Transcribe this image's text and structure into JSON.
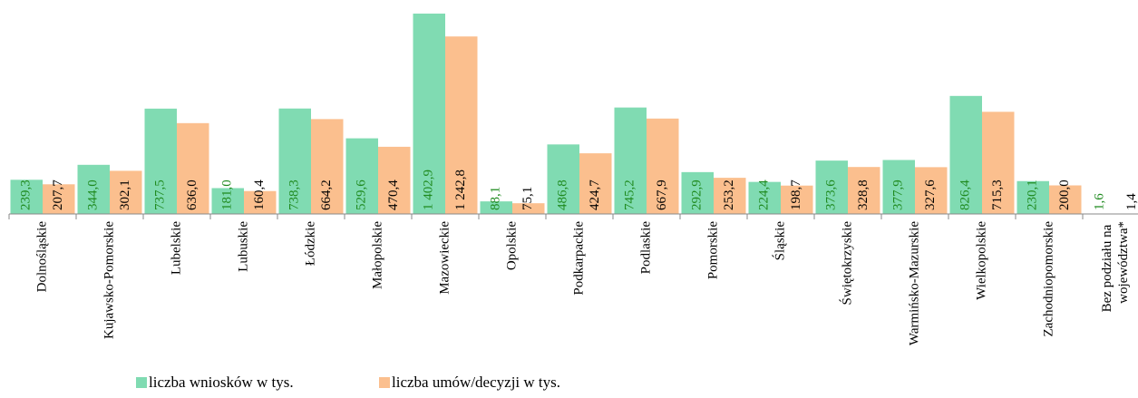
{
  "chart_data": {
    "type": "bar",
    "categories": [
      "Dolnośląskie",
      "Kujawsko-Pomorskie",
      "Lubelskie",
      "Lubuskie",
      "Łódzkie",
      "Małopolskie",
      "Mazowieckie",
      "Opolskie",
      "Podkarpackie",
      "Podlaskie",
      "Pomorskie",
      "Śląskie",
      "Świętokrzyskie",
      "Warmińsko-Mazurskie",
      "Wielkopolskie",
      "Zachodniopomorskie",
      "Bez podziału na województwa*"
    ],
    "series": [
      {
        "name": "liczba wniosków w tys.",
        "color": "#80dbb2",
        "values": [
          239.3,
          344.0,
          737.5,
          181.0,
          738.3,
          529.6,
          1402.9,
          88.1,
          486.8,
          745.2,
          292.9,
          224.4,
          373.6,
          377.9,
          826.4,
          230.1,
          1.6
        ],
        "value_labels": [
          "239,3",
          "344,0",
          "737,5",
          "181,0",
          "738,3",
          "529,6",
          "1 402,9",
          "88,1",
          "486,8",
          "745,2",
          "292,9",
          "224,4",
          "373,6",
          "377,9",
          "826,4",
          "230,1",
          "1,6"
        ]
      },
      {
        "name": "liczba umów/decyzji w tys.",
        "color": "#fbbf8e",
        "values": [
          207.7,
          302.1,
          636.0,
          160.4,
          664.2,
          470.4,
          1242.8,
          75.1,
          424.7,
          667.9,
          253.2,
          198.7,
          328.8,
          327.6,
          715.3,
          200.0,
          1.4
        ],
        "value_labels": [
          "207,7",
          "302,1",
          "636,0",
          "160,4",
          "664,2",
          "470,4",
          "1 242,8",
          "75,1",
          "424,7",
          "667,9",
          "253,2",
          "198,7",
          "328,8",
          "327,6",
          "715,3",
          "200,0",
          "1,4"
        ]
      }
    ]
  }
}
